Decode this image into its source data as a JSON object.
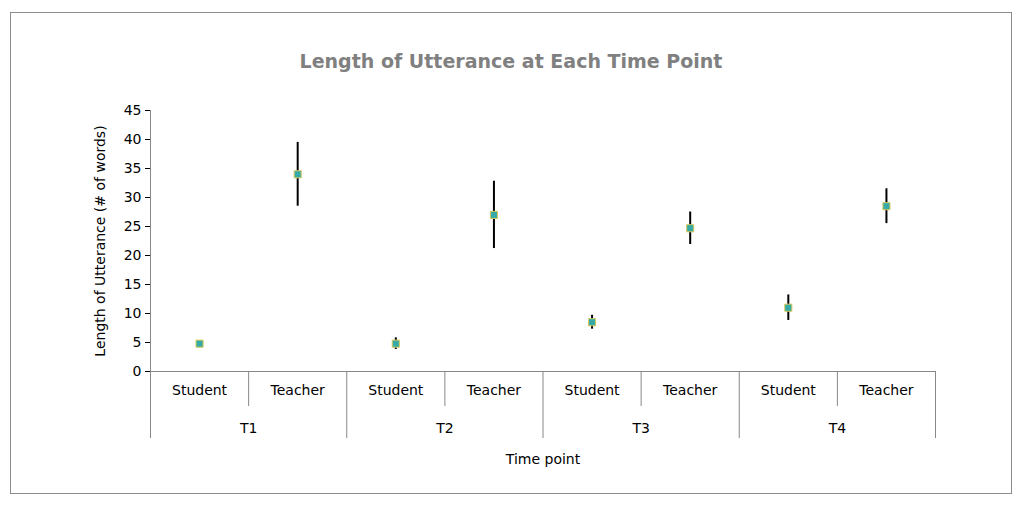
{
  "chart_data": {
    "type": "scatter",
    "title": "Length of Utterance at Each Time Point",
    "x_label": "Time point",
    "y_label": "Length of Utterance (# of words)",
    "categories": [
      "Student",
      "Teacher",
      "Student",
      "Teacher",
      "Student",
      "Teacher",
      "Student",
      "Teacher"
    ],
    "groups": [
      "T1",
      "T1",
      "T2",
      "T2",
      "T3",
      "T3",
      "T4",
      "T4"
    ],
    "values": [
      4.8,
      34,
      4.8,
      27,
      8.5,
      24.7,
      11,
      28.5
    ],
    "errors": [
      0.3,
      5.5,
      1,
      5.8,
      1.2,
      2.8,
      2.2,
      3
    ],
    "color": "#36aaa6",
    "marker": "square",
    "ylim": [
      0,
      45
    ],
    "yticks": [
      0,
      5,
      10,
      15,
      20,
      25,
      30,
      35,
      40,
      45
    ]
  }
}
